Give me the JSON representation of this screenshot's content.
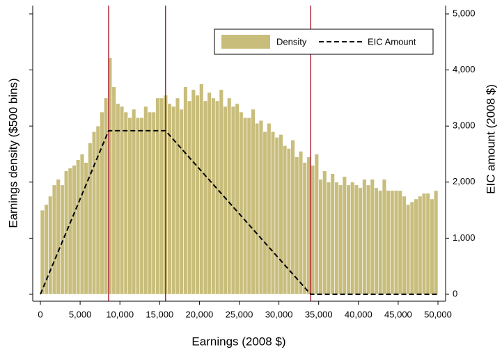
{
  "chart_data": {
    "type": "histogram",
    "x_label": "Earnings (2008 $)",
    "y_label": "Earnings density ($500 bins)",
    "y2_label": "EIC amount (2008 $)",
    "bins": [
      0,
      500,
      1000,
      1500,
      2000,
      2500,
      3000,
      3500,
      4000,
      4500,
      5000,
      5500,
      6000,
      6500,
      7000,
      7500,
      8000,
      8500,
      9000,
      9500,
      10000,
      10500,
      11000,
      11500,
      12000,
      12500,
      13000,
      13500,
      14000,
      14500,
      15000,
      15500,
      16000,
      16500,
      17000,
      17500,
      18000,
      18500,
      19000,
      19500,
      20000,
      20500,
      21000,
      21500,
      22000,
      22500,
      23000,
      23500,
      24000,
      24500,
      25000,
      25500,
      26000,
      26500,
      27000,
      27500,
      28000,
      28500,
      29000,
      29500,
      30000,
      30500,
      31000,
      31500,
      32000,
      32500,
      33000,
      33500,
      34000,
      34500,
      35000,
      35500,
      36000,
      36500,
      37000,
      37500,
      38000,
      38500,
      39000,
      39500,
      40000,
      40500,
      41000,
      41500,
      42000,
      42500,
      43000,
      43500,
      44000,
      44500,
      45000,
      45500,
      46000,
      46500,
      47000,
      47500,
      48000,
      48500,
      49000,
      49500,
      50000
    ],
    "series": [
      {
        "name": "Density",
        "color": "#c8bd7b",
        "values": [
          1500,
          1600,
          1750,
          1950,
          2050,
          1950,
          2200,
          2250,
          2300,
          2400,
          2500,
          2350,
          2700,
          2900,
          3000,
          3250,
          3500,
          4220,
          3700,
          3400,
          3350,
          3250,
          3150,
          3300,
          3150,
          3150,
          3350,
          3250,
          3250,
          3500,
          3500,
          3550,
          3400,
          3350,
          3500,
          3300,
          3700,
          3450,
          3650,
          3550,
          3750,
          3450,
          3600,
          3500,
          3450,
          3650,
          3350,
          3500,
          3350,
          3400,
          3250,
          3150,
          3150,
          3300,
          3050,
          3100,
          2900,
          3050,
          2900,
          2800,
          2850,
          2650,
          2600,
          2750,
          2450,
          2550,
          2350,
          2450,
          2300,
          2500,
          2050,
          2200,
          2000,
          2150,
          2000,
          1950,
          2100,
          1950,
          2000,
          1950,
          1900,
          2050,
          1950,
          2050,
          1900,
          1850,
          2050,
          1850,
          1850,
          1850,
          1850,
          1750,
          1600,
          1650,
          1700,
          1750,
          1800,
          1800,
          1700,
          1850
        ]
      },
      {
        "name": "EIC Amount",
        "color": "#000000",
        "dashed": true,
        "axis": "y2",
        "x": [
          0,
          8580,
          15740,
          33995,
          50000
        ],
        "values": [
          0,
          2917,
          2917,
          0,
          0
        ]
      }
    ],
    "reference_lines": {
      "color": "#b0283c",
      "x": [
        8580,
        15740,
        33995
      ]
    },
    "xlim": [
      0,
      50000
    ],
    "xticks": [
      0,
      {
        "value": 5000,
        "label": "5,000"
      },
      {
        "value": 10000,
        "label": "10,000"
      },
      {
        "value": 15000,
        "label": "15,000"
      },
      {
        "value": 20000,
        "label": "20,000"
      },
      {
        "value": 25000,
        "label": "25,000"
      },
      {
        "value": 30000,
        "label": "30,000"
      },
      {
        "value": 35000,
        "label": "35,000"
      },
      {
        "value": 40000,
        "label": "40,000"
      },
      {
        "value": 45000,
        "label": "45,000"
      },
      {
        "value": 50000,
        "label": "50,000"
      }
    ],
    "y2lim": [
      0,
      5000
    ],
    "y2ticks": [
      0,
      {
        "value": 1000,
        "label": "1,000"
      },
      {
        "value": 2000,
        "label": "2,000"
      },
      {
        "value": 3000,
        "label": "3,000"
      },
      {
        "value": 4000,
        "label": "4,000"
      },
      {
        "value": 5000,
        "label": "5,000"
      }
    ],
    "legend": "top-right"
  }
}
